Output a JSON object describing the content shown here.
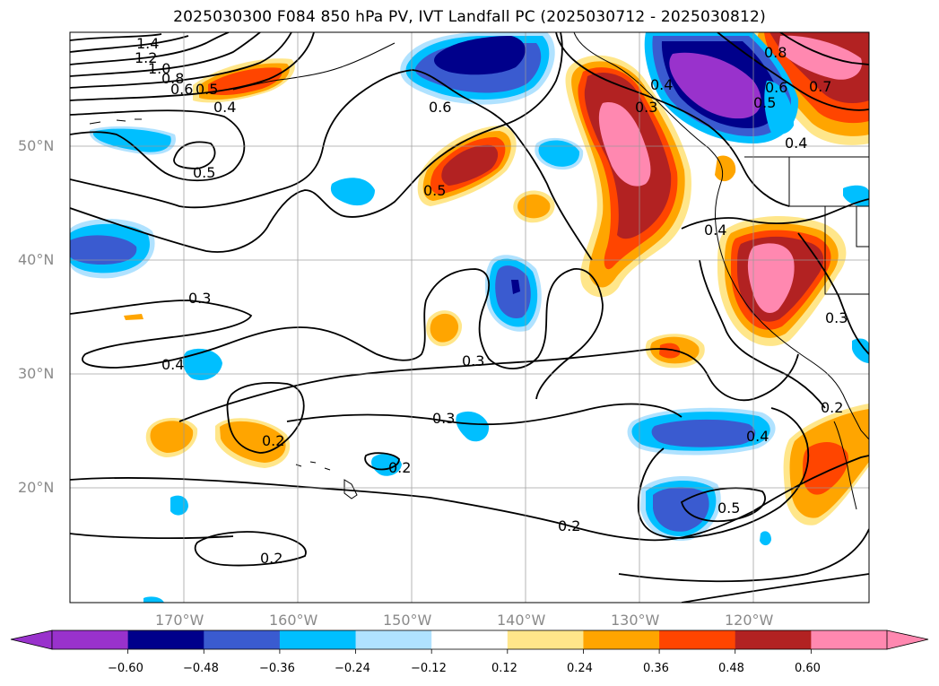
{
  "title": "2025030300 F084 850 hPa PV, IVT Landfall PC (2025030712 - 2025030812)",
  "lat_labels": [
    "50°N",
    "40°N",
    "30°N",
    "20°N"
  ],
  "lon_labels": [
    "170°W",
    "160°W",
    "150°W",
    "140°W",
    "130°W",
    "120°W"
  ],
  "colorbar": {
    "ticks": [
      "−0.60",
      "−0.48",
      "−0.36",
      "−0.24",
      "−0.12",
      "0.12",
      "0.24",
      "0.36",
      "0.48",
      "0.60"
    ],
    "colors": [
      "#9932CC",
      "#00008B",
      "#3A5BD0",
      "#00BFFF",
      "#B0E2FF",
      "#FFFFFF",
      "#FFE68A",
      "#FFA500",
      "#FF4500",
      "#B22222",
      "#FF88B0"
    ]
  },
  "contour_labels": [
    "1.4",
    "1.2",
    "1.0",
    "0.8",
    "0.6",
    "0.5",
    "0.4",
    "0.5",
    "0.6",
    "0.5",
    "0.3",
    "0.4",
    "0.3",
    "0.3",
    "0.2",
    "0.2",
    "0.2",
    "0.2",
    "0.4",
    "0.3",
    "0.8",
    "0.7",
    "0.6",
    "0.5",
    "0.4",
    "0.5",
    "0.4",
    "0.4",
    "0.3",
    "0.2"
  ]
}
